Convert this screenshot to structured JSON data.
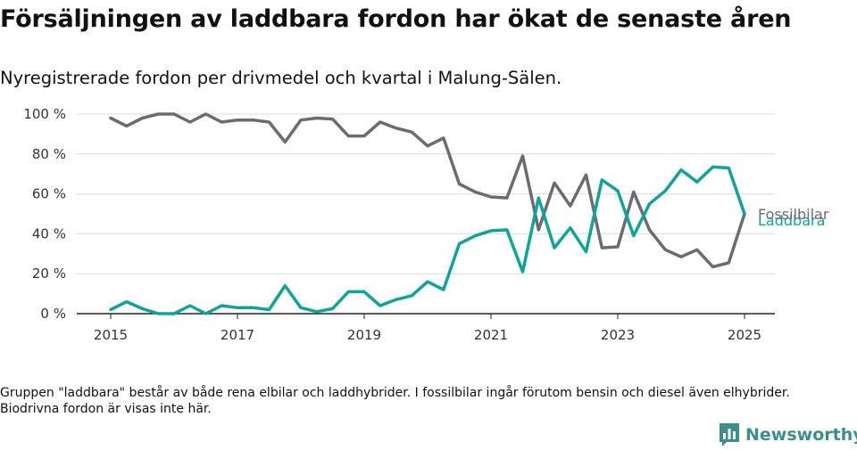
{
  "title": "Försäljningen av laddbara fordon har ökat de senaste åren",
  "subtitle": "Nyregistrerade fordon per drivmedel och kvartal i Malung-Sälen.",
  "note": "Gruppen \"laddbara\" består av både rena elbilar och laddhybrider. I fossilbilar ingår förutom bensin och diesel även elhybrider. Biodrivna fordon är visas inte här.",
  "logo": {
    "text": "Newsworthy",
    "icon": "bar-chart-logo-icon",
    "color": "#3c8f8b"
  },
  "chart_data": {
    "type": "line",
    "ylim": [
      0,
      100
    ],
    "yticks": [
      0,
      20,
      40,
      60,
      80,
      100
    ],
    "ytick_labels": [
      "0 %",
      "20 %",
      "40 %",
      "60 %",
      "80 %",
      "100 %"
    ],
    "xticks": [
      2015,
      2017,
      2019,
      2021,
      2023,
      2025
    ],
    "xtick_labels": [
      "2015",
      "2017",
      "2019",
      "2021",
      "2023",
      "2025"
    ],
    "grid": true,
    "x": [
      2015.0,
      2015.25,
      2015.5,
      2015.75,
      2016.0,
      2016.25,
      2016.5,
      2016.75,
      2017.0,
      2017.25,
      2017.5,
      2017.75,
      2018.0,
      2018.25,
      2018.5,
      2018.75,
      2019.0,
      2019.25,
      2019.5,
      2019.75,
      2020.0,
      2020.25,
      2020.5,
      2020.75,
      2021.0,
      2021.25,
      2021.5,
      2021.75,
      2022.0,
      2022.25,
      2022.5,
      2022.75,
      2023.0,
      2023.25,
      2023.5,
      2023.75,
      2024.0,
      2024.25,
      2024.5,
      2024.75,
      2025.0
    ],
    "series": [
      {
        "name": "Fossilbilar",
        "color": "#6b6b72",
        "values": [
          98,
          94,
          98,
          100,
          100,
          96,
          100,
          96,
          97,
          97,
          96,
          86,
          97,
          98,
          97.5,
          89,
          89,
          96,
          93,
          91,
          84,
          88,
          65,
          61,
          58.5,
          58,
          79,
          42,
          65.5,
          54,
          69.5,
          33,
          33.5,
          61,
          42,
          32,
          28.5,
          32,
          23.5,
          25.5,
          50
        ]
      },
      {
        "name": "Laddbara",
        "color": "#0fa39a",
        "values": [
          2,
          6,
          2.5,
          0,
          0,
          4,
          0,
          4,
          3,
          3,
          2,
          14,
          3,
          1,
          2.5,
          11,
          11,
          4,
          7,
          9,
          16,
          12,
          35,
          39,
          41.5,
          42,
          21,
          58,
          33,
          43,
          31,
          67,
          61.5,
          39,
          55,
          61.5,
          72,
          66,
          73.5,
          73,
          50
        ]
      }
    ]
  }
}
